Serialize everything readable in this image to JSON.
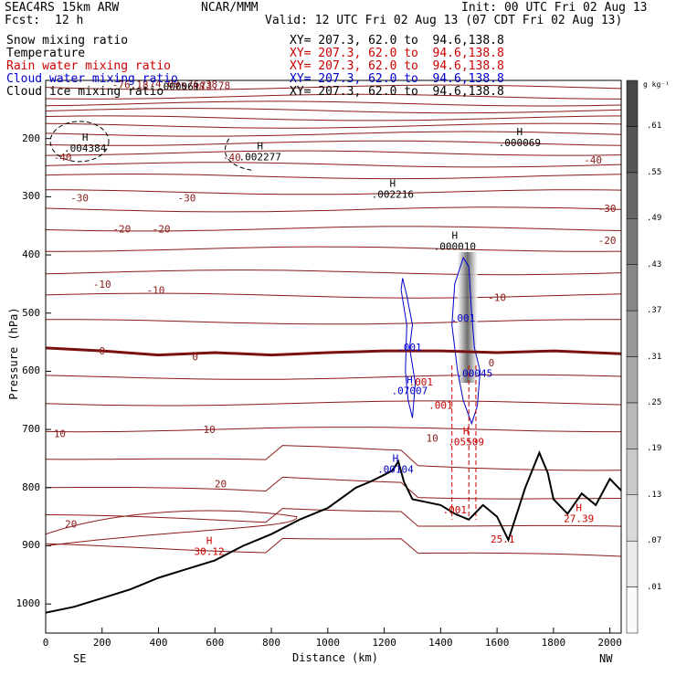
{
  "header": {
    "model": "SEAC4RS 15km ARW",
    "org": "NCAR/MMM",
    "init": "Init: 00 UTC Fri 02 Aug 13",
    "fcst_label": "Fcst:",
    "fcst_value": "12 h",
    "valid": "Valid: 12 UTC Fri 02 Aug 13 (07 CDT Fri 02 Aug 13)"
  },
  "fields": [
    {
      "name": "Snow mixing ratio",
      "xy": "XY= 207.3, 62.0 to  94.6,138.8",
      "color": "#000000"
    },
    {
      "name": "Temperature",
      "xy": "XY= 207.3, 62.0 to  94.6,138.8",
      "color": "#cc0000"
    },
    {
      "name": "Rain water mixing ratio",
      "xy": "XY= 207.3, 62.0 to  94.6,138.8",
      "color": "#cc0000"
    },
    {
      "name": "Cloud water mixing ratio",
      "xy": "XY= 207.3, 62.0 to  94.6,138.8",
      "color": "#0000cc"
    },
    {
      "name": "Cloud ice mixing ratio",
      "xy": "XY= 207.3, 62.0 to  94.6,138.8",
      "color": "#000000"
    }
  ],
  "chart_data": {
    "type": "cross-section",
    "xlabel": "Distance (km)",
    "ylabel": "Pressure (hPa)",
    "xlim": [
      0,
      2040
    ],
    "ylim": [
      1050,
      100
    ],
    "x_ticks": [
      0,
      200,
      400,
      600,
      800,
      1000,
      1200,
      1400,
      1600,
      1800,
      2000
    ],
    "y_ticks": [
      200,
      300,
      400,
      500,
      600,
      700,
      800,
      900,
      1000
    ],
    "x_end_left": "SE",
    "x_end_right": "NW",
    "colorbar": {
      "unit": "g kg⁻¹",
      "labels": [
        ".01",
        ".07",
        ".13",
        ".19",
        ".25",
        ".31",
        ".37",
        ".43",
        ".49",
        ".55",
        ".61"
      ]
    },
    "temperature_contours": [
      {
        "label": "-40",
        "x": 60,
        "p": 232
      },
      {
        "label": "-40",
        "x": 660,
        "p": 232
      },
      {
        "label": "-40",
        "x": 1940,
        "p": 237
      },
      {
        "label": "-30",
        "x": 120,
        "p": 302
      },
      {
        "label": "-30",
        "x": 500,
        "p": 302
      },
      {
        "label": "-30",
        "x": 1990,
        "p": 320
      },
      {
        "label": "-20",
        "x": 270,
        "p": 355
      },
      {
        "label": "-20",
        "x": 410,
        "p": 355
      },
      {
        "label": "-20",
        "x": 1990,
        "p": 375
      },
      {
        "label": "-10",
        "x": 200,
        "p": 450
      },
      {
        "label": "-10",
        "x": 390,
        "p": 460
      },
      {
        "label": "-10",
        "x": 1600,
        "p": 473
      },
      {
        "label": "0",
        "x": 200,
        "p": 565
      },
      {
        "label": "0",
        "x": 530,
        "p": 575
      },
      {
        "label": "0",
        "x": 1580,
        "p": 585
      },
      {
        "label": "10",
        "x": 50,
        "p": 707
      },
      {
        "label": "10",
        "x": 580,
        "p": 700
      },
      {
        "label": "10",
        "x": 1370,
        "p": 715
      },
      {
        "label": "20",
        "x": 620,
        "p": 793
      },
      {
        "label": "20",
        "x": 90,
        "p": 862
      }
    ],
    "max_labels": [
      {
        "label": "H",
        "value": ".004384",
        "x": 140,
        "p": 213
      },
      {
        "label": "H",
        "value": ".002277",
        "x": 760,
        "p": 228
      },
      {
        "label": "H",
        "value": ".002216",
        "x": 1230,
        "p": 292
      },
      {
        "label": "H",
        "value": ".000010",
        "x": 1450,
        "p": 382
      },
      {
        "label": "H",
        "value": ".000069",
        "x": 1680,
        "p": 204
      },
      {
        "label": "H",
        "value": "30.12",
        "x": 580,
        "p": 906
      },
      {
        "label": "H",
        "value": ".00104",
        "x": 1240,
        "p": 765
      },
      {
        "label": "H",
        "value": ".05509",
        "x": 1490,
        "p": 718
      },
      {
        "label": "H",
        "value": "27.39",
        "x": 1890,
        "p": 850
      },
      {
        "label": "",
        "value": "25.1",
        "x": 1620,
        "p": 885
      },
      {
        "label": "",
        "value": ".001",
        "x": 1450,
        "p": 835
      },
      {
        "label": "",
        "value": ".00045",
        "x": 1520,
        "p": 600
      },
      {
        "label": "",
        "value": ".001",
        "x": 1480,
        "p": 505
      },
      {
        "label": "",
        "value": ".001",
        "x": 1290,
        "p": 555
      },
      {
        "label": "H",
        "value": ".07007",
        "x": 1290,
        "p": 630
      },
      {
        "label": "",
        "value": ".001",
        "x": 1330,
        "p": 615
      },
      {
        "label": "",
        "value": ".001",
        "x": 1400,
        "p": 655
      }
    ],
    "top_labels": [
      "-76.18",
      "-75.08",
      "-73.78",
      "-76.38",
      "-74.09",
      ".000061"
    ],
    "terrain": [
      [
        0,
        1015
      ],
      [
        100,
        1005
      ],
      [
        200,
        990
      ],
      [
        300,
        975
      ],
      [
        400,
        955
      ],
      [
        500,
        940
      ],
      [
        600,
        925
      ],
      [
        700,
        900
      ],
      [
        800,
        880
      ],
      [
        900,
        855
      ],
      [
        1000,
        835
      ],
      [
        1100,
        800
      ],
      [
        1150,
        790
      ],
      [
        1200,
        778
      ],
      [
        1230,
        770
      ],
      [
        1250,
        755
      ],
      [
        1270,
        790
      ],
      [
        1300,
        820
      ],
      [
        1350,
        825
      ],
      [
        1400,
        830
      ],
      [
        1450,
        845
      ],
      [
        1500,
        855
      ],
      [
        1550,
        830
      ],
      [
        1600,
        850
      ],
      [
        1640,
        890
      ],
      [
        1700,
        800
      ],
      [
        1750,
        740
      ],
      [
        1780,
        775
      ],
      [
        1800,
        820
      ],
      [
        1850,
        845
      ],
      [
        1900,
        810
      ],
      [
        1950,
        830
      ],
      [
        2000,
        785
      ],
      [
        2040,
        805
      ]
    ],
    "thick_zero_line": [
      [
        0,
        560
      ],
      [
        200,
        565
      ],
      [
        400,
        572
      ],
      [
        600,
        568
      ],
      [
        800,
        572
      ],
      [
        1000,
        568
      ],
      [
        1200,
        565
      ],
      [
        1400,
        565
      ],
      [
        1600,
        568
      ],
      [
        1800,
        565
      ],
      [
        2040,
        570
      ]
    ]
  }
}
